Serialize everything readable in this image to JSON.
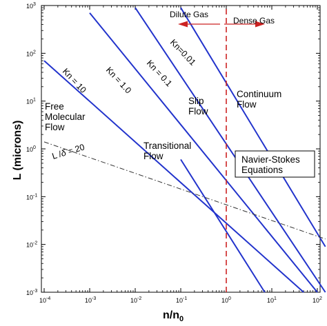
{
  "chart_data": {
    "type": "line",
    "xlabel": "n/n",
    "xlabel_sub": "0",
    "ylabel": "L (microns)",
    "xscale": "log",
    "yscale": "log",
    "xlim": [
      0.0001,
      100
    ],
    "ylim": [
      0.001,
      1000
    ],
    "x_ticks": [
      {
        "base": "10",
        "exp": "-4",
        "value": 0.0001
      },
      {
        "base": "10",
        "exp": "-3",
        "value": 0.001
      },
      {
        "base": "10",
        "exp": "-2",
        "value": 0.01
      },
      {
        "base": "10",
        "exp": "-1",
        "value": 0.1
      },
      {
        "base": "10",
        "exp": "0",
        "value": 1
      },
      {
        "base": "10",
        "exp": "1",
        "value": 10
      },
      {
        "base": "10",
        "exp": "2",
        "value": 100
      }
    ],
    "y_ticks": [
      {
        "base": "10",
        "exp": "-3",
        "value": 0.001
      },
      {
        "base": "10",
        "exp": "-2",
        "value": 0.01
      },
      {
        "base": "10",
        "exp": "-1",
        "value": 0.1
      },
      {
        "base": "10",
        "exp": "0",
        "value": 1
      },
      {
        "base": "10",
        "exp": "1",
        "value": 10
      },
      {
        "base": "10",
        "exp": "2",
        "value": 100
      },
      {
        "base": "10",
        "exp": "3",
        "value": 1000
      }
    ],
    "series": [
      {
        "name": "Kn = 10",
        "style": "solid",
        "color": "#2233cc",
        "x": [
          0.0001,
          50
        ],
        "y": [
          70,
          0.001
        ]
      },
      {
        "name": "Kn = 1.0",
        "style": "solid",
        "color": "#2233cc",
        "x": [
          0.001,
          100
        ],
        "y": [
          700,
          0.001
        ]
      },
      {
        "name": "Kn = 0.1",
        "style": "solid",
        "color": "#2233cc",
        "x": [
          0.01,
          150
        ],
        "y": [
          900,
          0.001
        ]
      },
      {
        "name": "Kn=0.01",
        "style": "solid",
        "color": "#2233cc",
        "x": [
          0.1,
          150
        ],
        "y": [
          900,
          0.009
        ]
      },
      {
        "name": "",
        "style": "solid",
        "color": "#2233cc",
        "x": [
          0.1,
          7
        ],
        "y": [
          0.6,
          0.001
        ]
      },
      {
        "name": "L/δ = 20",
        "style": "dash-dot",
        "color": "#333333",
        "x": [
          0.0001,
          150
        ],
        "y": [
          1.4,
          0.013
        ]
      },
      {
        "name": "",
        "style": "dashed",
        "color": "#cc2222",
        "x": [
          1,
          1
        ],
        "y": [
          0.001,
          1000
        ]
      }
    ],
    "labels": {
      "free_molecular": [
        "Free",
        "Molecular",
        "Flow"
      ],
      "transitional": [
        "Transitional",
        "Flow"
      ],
      "slip": [
        "Slip",
        "Flow"
      ],
      "continuum": [
        "Continuum",
        "Flow"
      ],
      "navier_stokes": [
        "Navier-Stokes",
        "Equations"
      ],
      "dilute_gas": "Dilute Gas",
      "dense_gas": "Dense Gas",
      "kn_10": "Kn = 10",
      "kn_1": "Kn = 1.0",
      "kn_01": "Kn = 0.1",
      "kn_001": "Kn=0.01",
      "l_delta_main": "L /",
      "l_delta_symbol": "δ",
      "l_delta_value": " = 20"
    },
    "colors": {
      "kn_lines": "#2233cc",
      "dashed_divider": "#cc2222",
      "dash_dot": "#333333",
      "arrow": "#cc2222"
    }
  }
}
